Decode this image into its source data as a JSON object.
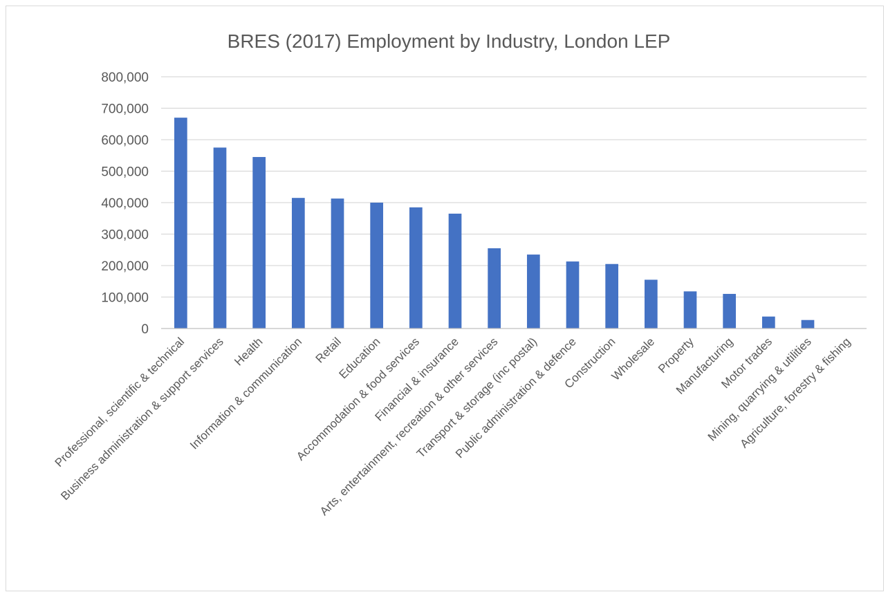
{
  "chart_data": {
    "type": "bar",
    "title": "BRES (2017) Employment by Industry, London LEP",
    "xlabel": "",
    "ylabel": "",
    "ylim": [
      0,
      800000
    ],
    "yticks": [
      0,
      100000,
      200000,
      300000,
      400000,
      500000,
      600000,
      700000,
      800000
    ],
    "ytick_labels": [
      "0",
      "100,000",
      "200,000",
      "300,000",
      "400,000",
      "500,000",
      "600,000",
      "700,000",
      "800,000"
    ],
    "grid": true,
    "legend": "none",
    "bar_color": "#4472c4",
    "categories": [
      "Professional, scientific & technical",
      "Business administration & support services",
      "Health",
      "Information & communication",
      "Retail",
      "Education",
      "Accommodation & food services",
      "Financial & insurance",
      "Arts, entertainment, recreation & other services",
      "Transport & storage (inc postal)",
      "Public administration & defence",
      "Construction",
      "Wholesale",
      "Property",
      "Manufacturing",
      "Motor trades",
      "Mining, quarrying & utilities",
      "Agriculture, forestry & fishing"
    ],
    "values": [
      670000,
      575000,
      545000,
      415000,
      413000,
      400000,
      385000,
      365000,
      255000,
      235000,
      213000,
      205000,
      155000,
      118000,
      110000,
      38000,
      27000,
      500
    ]
  }
}
